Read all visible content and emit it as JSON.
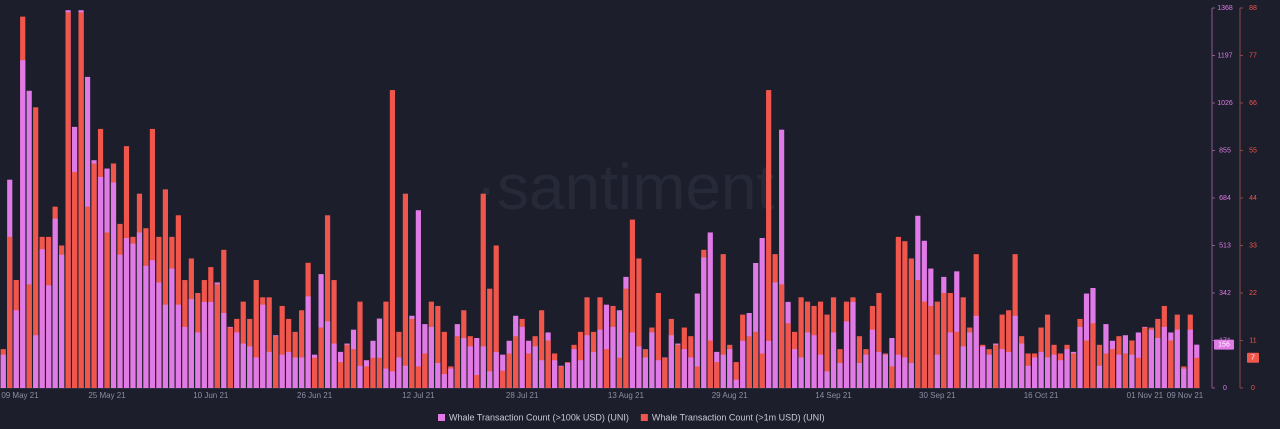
{
  "chart_data": {
    "type": "bar",
    "watermark": "·santiment",
    "categories": [
      "09 May 21",
      null,
      null,
      null,
      null,
      null,
      null,
      null,
      null,
      null,
      null,
      null,
      null,
      null,
      null,
      null,
      "25 May 21",
      null,
      null,
      null,
      null,
      null,
      null,
      null,
      null,
      null,
      null,
      null,
      null,
      null,
      null,
      null,
      "10 Jun 21",
      null,
      null,
      null,
      null,
      null,
      null,
      null,
      null,
      null,
      null,
      null,
      null,
      null,
      null,
      null,
      "26 Jun 21",
      null,
      null,
      null,
      null,
      null,
      null,
      null,
      null,
      null,
      null,
      null,
      null,
      null,
      null,
      null,
      "12 Jul 21",
      null,
      null,
      null,
      null,
      null,
      null,
      null,
      null,
      null,
      null,
      null,
      null,
      null,
      null,
      null,
      "28 Jul 21",
      null,
      null,
      null,
      null,
      null,
      null,
      null,
      null,
      null,
      null,
      null,
      null,
      null,
      null,
      null,
      "13 Aug 21",
      null,
      null,
      null,
      null,
      null,
      null,
      null,
      null,
      null,
      null,
      null,
      null,
      null,
      null,
      null,
      "29 Aug 21",
      null,
      null,
      null,
      null,
      null,
      null,
      null,
      null,
      null,
      null,
      null,
      null,
      null,
      null,
      null,
      "14 Sep 21",
      null,
      null,
      null,
      null,
      null,
      null,
      null,
      null,
      null,
      null,
      null,
      null,
      null,
      null,
      null,
      "30 Sep 21",
      null,
      null,
      null,
      null,
      null,
      null,
      null,
      null,
      null,
      null,
      null,
      null,
      null,
      null,
      null,
      "16 Oct 21",
      null,
      null,
      null,
      null,
      null,
      null,
      null,
      null,
      null,
      null,
      null,
      null,
      null,
      null,
      null,
      "01 Nov 21",
      null,
      null,
      null,
      null,
      null,
      null,
      null,
      "09 Nov 21"
    ],
    "series": [
      {
        "name": "Whale Transaction Count (>100k USD) (UNI)",
        "color": "#df7ae6",
        "axis": "y",
        "values": [
          120,
          750,
          280,
          1180,
          1070,
          190,
          500,
          370,
          610,
          480,
          1360,
          940,
          1360,
          1120,
          820,
          760,
          790,
          740,
          480,
          540,
          520,
          560,
          440,
          460,
          380,
          300,
          430,
          300,
          220,
          320,
          200,
          310,
          310,
          380,
          270,
          220,
          200,
          160,
          150,
          110,
          300,
          130,
          190,
          120,
          130,
          110,
          110,
          330,
          120,
          410,
          240,
          160,
          130,
          160,
          210,
          80,
          100,
          170,
          250,
          70,
          60,
          110,
          80,
          260,
          640,
          230,
          220,
          90,
          50,
          70,
          230,
          180,
          150,
          180,
          150,
          60,
          130,
          120,
          170,
          260,
          220,
          170,
          150,
          100,
          200,
          100,
          80,
          90,
          140,
          100,
          190,
          130,
          210,
          300,
          220,
          280,
          400,
          200,
          150,
          110,
          200,
          100,
          110,
          190,
          160,
          140,
          110,
          340,
          470,
          560,
          130,
          120,
          140,
          30,
          170,
          270,
          450,
          540,
          170,
          380,
          930,
          310,
          140,
          110,
          200,
          190,
          120,
          60,
          200,
          90,
          240,
          310,
          90,
          120,
          210,
          130,
          120,
          180,
          120,
          110,
          90,
          620,
          530,
          430,
          120,
          400,
          200,
          420,
          150,
          200,
          260,
          150,
          120,
          160,
          140,
          130,
          260,
          160,
          80,
          110,
          130,
          110,
          120,
          100,
          140,
          130,
          220,
          340,
          360,
          80,
          230,
          170,
          120,
          190,
          120,
          200,
          220,
          210,
          180,
          220,
          200,
          210,
          70,
          210,
          156
        ]
      },
      {
        "name": "Whale Transaction Count (>1m USD) (UNI)",
        "color": "#f0564b",
        "axis": "y2",
        "values": [
          9,
          35,
          25,
          86,
          24,
          65,
          35,
          35,
          42,
          33,
          87,
          50,
          87,
          42,
          52,
          60,
          36,
          52,
          38,
          56,
          35,
          45,
          37,
          60,
          35,
          46,
          35,
          40,
          25,
          30,
          22,
          25,
          28,
          24,
          32,
          14,
          16,
          20,
          16,
          25,
          21,
          21,
          12,
          19,
          16,
          13,
          18,
          29,
          7,
          14,
          40,
          25,
          6,
          10,
          9,
          20,
          5,
          7,
          7,
          20,
          69,
          13,
          45,
          16,
          5,
          8,
          20,
          19,
          13,
          5,
          12,
          18,
          12,
          3,
          45,
          23,
          33,
          4,
          8,
          12,
          16,
          8,
          12,
          18,
          11,
          8,
          5,
          6,
          10,
          13,
          21,
          13,
          21,
          9,
          19,
          7,
          23,
          39,
          30,
          9,
          14,
          22,
          7,
          16,
          10,
          14,
          12,
          5,
          32,
          11,
          6,
          31,
          10,
          6,
          17,
          12,
          13,
          8,
          69,
          31,
          24,
          15,
          13,
          21,
          20,
          19,
          20,
          17,
          21,
          9,
          20,
          21,
          12,
          9,
          19,
          22,
          8,
          5,
          35,
          34,
          30,
          25,
          20,
          19,
          20,
          22,
          22,
          13,
          21,
          14,
          31,
          10,
          9,
          10,
          17,
          18,
          31,
          12,
          8,
          8,
          14,
          17,
          10,
          8,
          10,
          8,
          16,
          11,
          15,
          10,
          8,
          9,
          12,
          8,
          11,
          7,
          14,
          14,
          16,
          19,
          11,
          17,
          5,
          17,
          7
        ]
      }
    ],
    "ylim": [
      0,
      1368
    ],
    "yticks": [
      0,
      171,
      342,
      513,
      684,
      855,
      1026,
      1197,
      1368
    ],
    "y2lim": [
      0,
      88
    ],
    "y2ticks": [
      0,
      11,
      22,
      33,
      44,
      55,
      66,
      77,
      88
    ],
    "legend": "bottom"
  }
}
